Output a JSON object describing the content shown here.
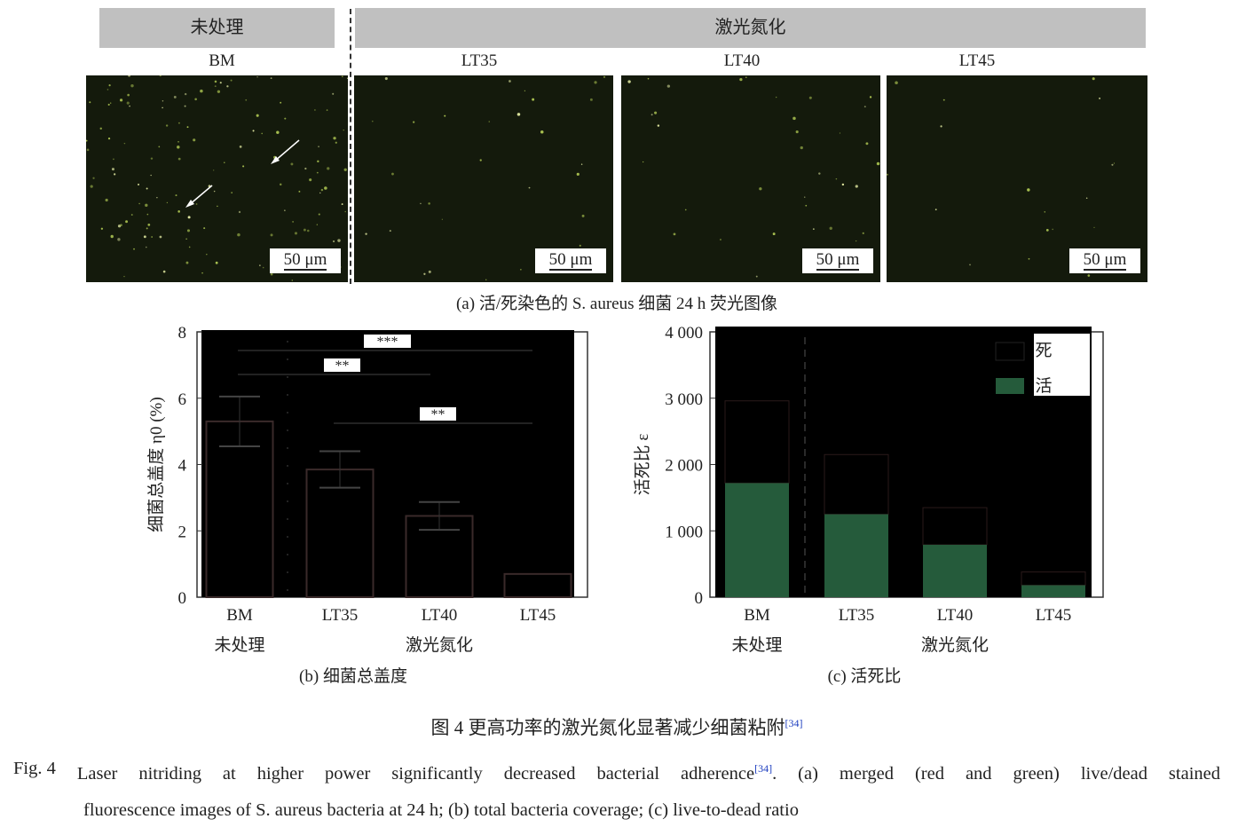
{
  "panel_a": {
    "group_headers": [
      "未处理",
      "激光氮化"
    ],
    "images": [
      {
        "label": "BM",
        "scale_bar": "50 μm"
      },
      {
        "label": "LT35",
        "scale_bar": "50 μm"
      },
      {
        "label": "LT40",
        "scale_bar": "50 μm"
      },
      {
        "label": "LT45",
        "scale_bar": "50 μm"
      }
    ],
    "caption": "(a) 活/死染色的 S. aureus 细菌 24 h 荧光图像"
  },
  "chart_data": [
    {
      "type": "bar",
      "categories": [
        "BM",
        "LT35",
        "LT40",
        "LT45"
      ],
      "group_labels": [
        "未处理",
        "激光氮化"
      ],
      "values": [
        5.3,
        3.85,
        2.45,
        0.7
      ],
      "error": [
        0.75,
        0.55,
        0.42,
        0.0
      ],
      "ylabel": "细菌总盖度 η0 (%)",
      "ylim": [
        0,
        8
      ],
      "yticks": [
        "0",
        "2",
        "4",
        "6",
        "8"
      ],
      "significance": [
        {
          "pair": [
            "BM",
            "LT45"
          ],
          "label": "***"
        },
        {
          "pair": [
            "BM",
            "LT40"
          ],
          "label": "**"
        },
        {
          "pair": [
            "LT35",
            "LT45"
          ],
          "label": "**"
        }
      ],
      "caption": "(b) 细菌总盖度",
      "background": "#000000"
    },
    {
      "type": "bar",
      "stacked": true,
      "categories": [
        "BM",
        "LT35",
        "LT40",
        "LT45"
      ],
      "group_labels": [
        "未处理",
        "激光氮化"
      ],
      "series": [
        {
          "name": "活",
          "values": [
            1720,
            1250,
            790,
            180
          ],
          "color": "#255b3b"
        },
        {
          "name": "死",
          "values": [
            1240,
            900,
            560,
            200
          ],
          "color": "#000000"
        }
      ],
      "ylabel": "活死比 ε",
      "ylim": [
        0,
        4000
      ],
      "yticks": [
        "0",
        "1 000",
        "2 000",
        "3 000",
        "4 000"
      ],
      "legend": "top-right",
      "caption": "(c) 活死比"
    }
  ],
  "figure_caption_cn": {
    "text": "图 4    更高功率的激光氮化显著减少细菌粘附",
    "ref": "[34]"
  },
  "figure_caption_en": {
    "label": "Fig. 4",
    "line1_a": "Laser nitriding at higher power significantly decreased bacterial adherence",
    "ref": "[34]",
    "line1_b": ". (a) merged (red and green) live/dead stained",
    "line2": "fluorescence images of S. aureus bacteria at 24 h; (b) total bacteria coverage; (c) live-to-dead ratio"
  }
}
